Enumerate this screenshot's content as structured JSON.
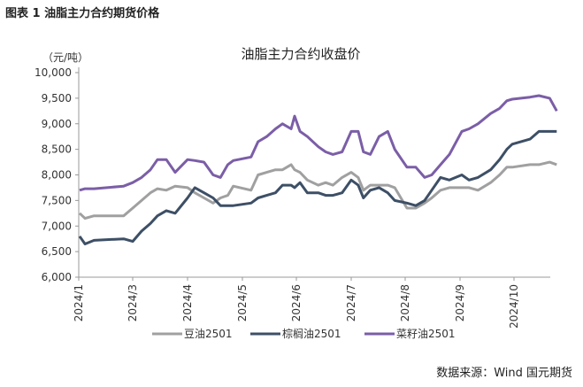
{
  "figure_title": "图表 1  油脂主力合约期货价格",
  "source": "数据来源：Wind  国元期货",
  "chart_data": {
    "type": "line",
    "title": "油脂主力合约收盘价",
    "ylabel": "（元/吨）",
    "ylim": [
      6000,
      10000
    ],
    "yticks": [
      6000,
      6500,
      7000,
      7500,
      8000,
      8500,
      9000,
      9500,
      10000
    ],
    "ytick_labels": [
      "6,000",
      "6,500",
      "7,000",
      "7,500",
      "8,000",
      "8,500",
      "9,000",
      "9,500",
      "10,000"
    ],
    "xticks": [
      "2024-01-01",
      "2024-03-01",
      "2024-04-01",
      "2024-05-01",
      "2024-06-01",
      "2024-07-01",
      "2024-08-01",
      "2024-09-01",
      "2024-10-01"
    ],
    "xtick_labels": [
      "2024/1",
      "2024/3",
      "2024/4",
      "2024/5",
      "2024/6",
      "2024/7",
      "2024/8",
      "2024/9",
      "2024/10"
    ],
    "grid": false,
    "legend_position": "bottom",
    "x": [
      "2024-01-02",
      "2024-01-08",
      "2024-01-18",
      "2024-02-20",
      "2024-03-01",
      "2024-03-06",
      "2024-03-11",
      "2024-03-15",
      "2024-03-20",
      "2024-03-25",
      "2024-04-01",
      "2024-04-05",
      "2024-04-10",
      "2024-04-15",
      "2024-04-19",
      "2024-04-23",
      "2024-04-26",
      "2024-05-06",
      "2024-05-10",
      "2024-05-15",
      "2024-05-20",
      "2024-05-24",
      "2024-05-29",
      "2024-05-31",
      "2024-06-03",
      "2024-06-07",
      "2024-06-13",
      "2024-06-17",
      "2024-06-21",
      "2024-06-26",
      "2024-07-01",
      "2024-07-05",
      "2024-07-08",
      "2024-07-12",
      "2024-07-17",
      "2024-07-22",
      "2024-07-26",
      "2024-08-02",
      "2024-08-07",
      "2024-08-12",
      "2024-08-16",
      "2024-08-21",
      "2024-08-26",
      "2024-09-02",
      "2024-09-06",
      "2024-09-11",
      "2024-09-18",
      "2024-09-23",
      "2024-09-27",
      "2024-09-30",
      "2024-10-10",
      "2024-10-15",
      "2024-10-21",
      "2024-10-25"
    ],
    "series": [
      {
        "name": "豆油2501",
        "color": "#a0a0a0",
        "values": [
          7250,
          7150,
          7200,
          7200,
          7350,
          7500,
          7650,
          7730,
          7700,
          7780,
          7750,
          7650,
          7550,
          7450,
          7550,
          7600,
          7780,
          7700,
          8000,
          8050,
          8100,
          8100,
          8200,
          8100,
          8050,
          7900,
          7800,
          7850,
          7800,
          7950,
          8050,
          7950,
          7700,
          7800,
          7800,
          7800,
          7750,
          7350,
          7350,
          7450,
          7550,
          7700,
          7750,
          7750,
          7750,
          7700,
          7850,
          8000,
          8150,
          8150,
          8200,
          8200,
          8250,
          8200
        ]
      },
      {
        "name": "棕榈油2501",
        "color": "#3d4f66",
        "values": [
          6800,
          6650,
          6720,
          6750,
          6700,
          6900,
          7050,
          7200,
          7300,
          7250,
          7550,
          7750,
          7650,
          7550,
          7400,
          7400,
          7400,
          7450,
          7550,
          7600,
          7650,
          7800,
          7800,
          7750,
          7850,
          7650,
          7650,
          7600,
          7600,
          7650,
          7900,
          7800,
          7550,
          7700,
          7750,
          7650,
          7500,
          7450,
          7400,
          7500,
          7700,
          7950,
          7900,
          8000,
          7900,
          7950,
          8100,
          8300,
          8500,
          8600,
          8700,
          8850,
          8850,
          8850
        ]
      },
      {
        "name": "菜籽油2501",
        "color": "#7b5ea7",
        "values": [
          7700,
          7730,
          7730,
          7780,
          7850,
          7950,
          8100,
          8300,
          8300,
          8050,
          8300,
          8280,
          8250,
          8000,
          7950,
          8200,
          8280,
          8350,
          8650,
          8750,
          8900,
          9000,
          8900,
          9150,
          8850,
          8750,
          8550,
          8450,
          8400,
          8450,
          8850,
          8850,
          8450,
          8400,
          8750,
          8850,
          8500,
          8150,
          8150,
          7950,
          8000,
          8200,
          8400,
          8850,
          8900,
          9000,
          9200,
          9300,
          9450,
          9480,
          9520,
          9550,
          9500,
          9250
        ]
      }
    ]
  }
}
